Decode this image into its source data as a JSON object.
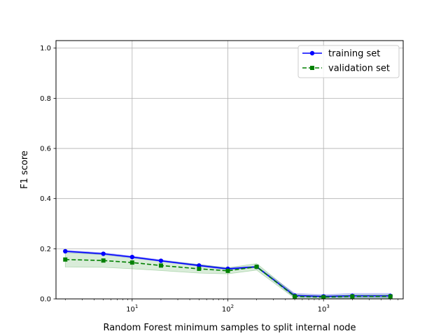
{
  "chart_data": {
    "type": "line",
    "title": "",
    "xlabel": "Random Forest minimum samples to split internal node",
    "ylabel": "F1 score",
    "x_scale": "log",
    "xlim": [
      1.6,
      6800
    ],
    "ylim": [
      0.0,
      1.03
    ],
    "grid": true,
    "legend_position": "upper-right",
    "x_ticks": [
      {
        "value": 10,
        "base": "10",
        "exp": "1"
      },
      {
        "value": 100,
        "base": "10",
        "exp": "2"
      },
      {
        "value": 1000,
        "base": "10",
        "exp": "3"
      }
    ],
    "y_ticks": [
      {
        "value": 0.0,
        "label": "0.0"
      },
      {
        "value": 0.2,
        "label": "0.2"
      },
      {
        "value": 0.4,
        "label": "0.4"
      },
      {
        "value": 0.6,
        "label": "0.6"
      },
      {
        "value": 0.8,
        "label": "0.8"
      },
      {
        "value": 1.0,
        "label": "1.0"
      }
    ],
    "x": [
      2,
      5,
      10,
      20,
      50,
      100,
      200,
      500,
      1000,
      2000,
      5000
    ],
    "series": [
      {
        "name": "training set",
        "color": "#0000ff",
        "line_style": "solid",
        "marker": "circle",
        "band_color": "#0000ff",
        "values": [
          0.19,
          0.18,
          0.167,
          0.152,
          0.133,
          0.12,
          0.128,
          0.013,
          0.01,
          0.012,
          0.012
        ],
        "band_lower": [
          0.186,
          0.176,
          0.163,
          0.149,
          0.13,
          0.116,
          0.125,
          0.006,
          0.005,
          0.004,
          0.004
        ],
        "band_upper": [
          0.194,
          0.184,
          0.171,
          0.156,
          0.137,
          0.124,
          0.131,
          0.022,
          0.017,
          0.022,
          0.022
        ]
      },
      {
        "name": "validation set",
        "color": "#008000",
        "line_style": "dashed",
        "marker": "square",
        "band_color": "#008000",
        "values": [
          0.157,
          0.153,
          0.145,
          0.133,
          0.12,
          0.112,
          0.128,
          0.01,
          0.007,
          0.01,
          0.01
        ],
        "band_lower": [
          0.127,
          0.126,
          0.12,
          0.113,
          0.103,
          0.1,
          0.115,
          0.002,
          0.001,
          0.003,
          0.003
        ],
        "band_upper": [
          0.185,
          0.178,
          0.168,
          0.153,
          0.137,
          0.124,
          0.141,
          0.018,
          0.013,
          0.017,
          0.017
        ]
      }
    ]
  }
}
